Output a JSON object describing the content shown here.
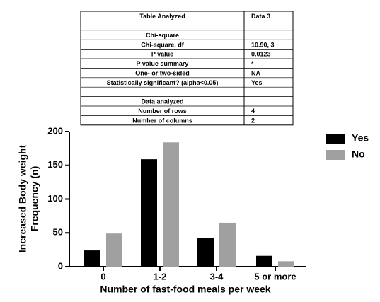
{
  "table": {
    "rows": [
      [
        "Table Analyzed",
        "Data 3"
      ],
      [
        null,
        null
      ],
      [
        "Chi-square",
        null
      ],
      [
        "Chi-square, df",
        "10.90, 3"
      ],
      [
        "P value",
        "0.0123"
      ],
      [
        "P value summary",
        "*"
      ],
      [
        "One- or two-sided",
        "NA"
      ],
      [
        "Statistically significant? (alpha<0.05)",
        "Yes"
      ],
      [
        null,
        null
      ],
      [
        "Data analyzed",
        null
      ],
      [
        "Number of rows",
        "4"
      ],
      [
        "Number of columns",
        "2"
      ]
    ]
  },
  "chart_data": {
    "type": "bar",
    "y_label": [
      "Increased Body weight",
      "Frequency (n)"
    ],
    "x_label": "Number of fast-food meals per week",
    "categories": [
      "0",
      "1-2",
      "3-4",
      "5 or more"
    ],
    "series": [
      {
        "name": "Yes",
        "color": "#000000",
        "values": [
          24,
          159,
          42,
          16
        ]
      },
      {
        "name": "No",
        "color": "#a0a0a0",
        "values": [
          49,
          184,
          65,
          8
        ]
      }
    ],
    "ylim": [
      0,
      200
    ],
    "yticks": [
      0,
      50,
      100,
      150,
      200
    ],
    "legend": "top-right"
  }
}
